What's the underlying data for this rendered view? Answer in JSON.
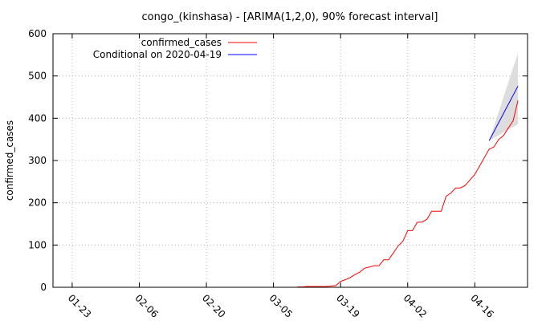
{
  "chart_data": {
    "type": "line",
    "title": "congo_(kinshasa) -  [ARIMA(1,2,0), 90% forecast interval]",
    "xlabel": "",
    "ylabel": "confirmed_cases",
    "ylim": [
      0,
      600
    ],
    "yticks": [
      0,
      100,
      200,
      300,
      400,
      500,
      600
    ],
    "xlim": [
      "2020-01-19",
      "2020-04-27"
    ],
    "xticks": [
      "01-23",
      "02-06",
      "02-20",
      "03-05",
      "03-19",
      "04-02",
      "04-16"
    ],
    "xtick_dates": [
      "2020-01-23",
      "2020-02-06",
      "2020-02-20",
      "2020-03-05",
      "2020-03-19",
      "2020-04-02",
      "2020-04-16"
    ],
    "grid": true,
    "legend_position": "top-left",
    "series": [
      {
        "name": "confirmed_cases",
        "color": "#ff0000",
        "x": [
          "2020-03-10",
          "2020-03-11",
          "2020-03-12",
          "2020-03-13",
          "2020-03-14",
          "2020-03-15",
          "2020-03-16",
          "2020-03-17",
          "2020-03-18",
          "2020-03-19",
          "2020-03-20",
          "2020-03-21",
          "2020-03-22",
          "2020-03-23",
          "2020-03-24",
          "2020-03-25",
          "2020-03-26",
          "2020-03-27",
          "2020-03-28",
          "2020-03-29",
          "2020-03-30",
          "2020-03-31",
          "2020-04-01",
          "2020-04-02",
          "2020-04-03",
          "2020-04-04",
          "2020-04-05",
          "2020-04-06",
          "2020-04-07",
          "2020-04-08",
          "2020-04-09",
          "2020-04-10",
          "2020-04-11",
          "2020-04-12",
          "2020-04-13",
          "2020-04-14",
          "2020-04-15",
          "2020-04-16",
          "2020-04-17",
          "2020-04-18",
          "2020-04-19",
          "2020-04-20",
          "2020-04-21",
          "2020-04-22",
          "2020-04-23",
          "2020-04-24",
          "2020-04-25"
        ],
        "values": [
          1,
          1,
          2,
          2,
          2,
          2,
          2,
          3,
          4,
          14,
          18,
          23,
          30,
          36,
          45,
          48,
          51,
          51,
          65,
          65,
          81,
          98,
          109,
          134,
          134,
          154,
          154,
          161,
          180,
          180,
          180,
          215,
          223,
          235,
          235,
          241,
          254,
          267,
          287,
          307,
          327,
          332,
          350,
          359,
          377,
          394,
          442
        ]
      },
      {
        "name": "Conditional on 2020-04-19",
        "color": "#0000ff",
        "x": [
          "2020-04-19",
          "2020-04-25"
        ],
        "values": [
          347,
          476
        ],
        "interval_lower": [
          347,
          386
        ],
        "interval_upper": [
          347,
          554
        ],
        "interval_color": "#dddddd"
      }
    ]
  }
}
